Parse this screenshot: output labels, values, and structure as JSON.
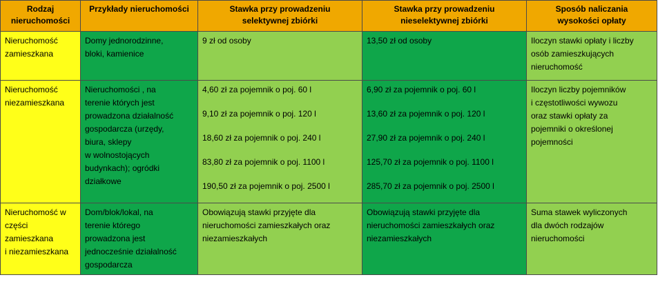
{
  "headers": [
    [
      "Rodzaj",
      "nieruchomości"
    ],
    [
      "Przykłady nieruchomości"
    ],
    [
      "Stawka przy prowadzeniu",
      "selektywnej zbiórki"
    ],
    [
      "Stawka przy prowadzeniu",
      "nieselektywnej zbiórki"
    ],
    [
      "Sposób naliczania",
      "wysokości opłaty"
    ]
  ],
  "rows": [
    {
      "type": [
        "Nieruchomość",
        "zamieszkana"
      ],
      "examples": [
        "Domy jednorodzinne,",
        "bloki, kamienice"
      ],
      "selective": [
        "9 zł od osoby"
      ],
      "nonselective": [
        "13,50 zł od osoby"
      ],
      "method": [
        "Iloczyn stawki opłaty i liczby",
        "osób zamieszkujących",
        "nieruchomość"
      ]
    },
    {
      "type": [
        "Nieruchomość",
        "niezamieszkana"
      ],
      "examples": [
        "Nieruchomości , na",
        "terenie których jest",
        "prowadzona działalność",
        "gospodarcza (urzędy,",
        "biura, sklepy",
        "w wolnostojących",
        "budynkach); ogródki",
        "działkowe"
      ],
      "selective": [
        "4,60 zł za pojemnik o poj. 60 l",
        "9,10 zł za pojemnik o poj. 120 l",
        "18,60 zł za pojemnik o poj. 240 l",
        "83,80 zł za pojemnik o poj. 1100 l",
        "190,50 zł za pojemnik o poj. 2500 l"
      ],
      "nonselective": [
        "6,90 zł za pojemnik o poj. 60 l",
        "13,60 zł za pojemnik o poj. 120 l",
        "27,90 zł za pojemnik o poj. 240 l",
        "125,70 zł za pojemnik o poj. 1100 l",
        "285,70 zł za pojemnik o poj. 2500 l"
      ],
      "method": [
        "Iloczyn liczby pojemników",
        "i częstotliwości wywozu",
        "oraz stawki opłaty za",
        "pojemniki o określonej",
        "pojemności"
      ]
    },
    {
      "type": [
        "Nieruchomość w",
        "części",
        "zamieszkana",
        "i niezamieszkana"
      ],
      "examples": [
        "Dom/blok/lokal, na",
        "terenie którego",
        "prowadzona jest",
        "jednocześnie działalność",
        "gospodarcza"
      ],
      "selective": [
        "Obowiązują stawki przyjęte dla",
        "nieruchomości zamieszkałych oraz",
        "niezamieszkałych"
      ],
      "nonselective": [
        "Obowiązują stawki przyjęte dla",
        "nieruchomości zamieszkałych oraz",
        "niezamieszkałych"
      ],
      "method": [
        "Suma stawek wyliczonych",
        "dla dwóch rodzajów",
        "nieruchomości"
      ]
    }
  ],
  "colors": {
    "header": "#f0a800",
    "type_column": "#ffff19",
    "dark_green": "#0fa64a",
    "light_green": "#92d050"
  }
}
